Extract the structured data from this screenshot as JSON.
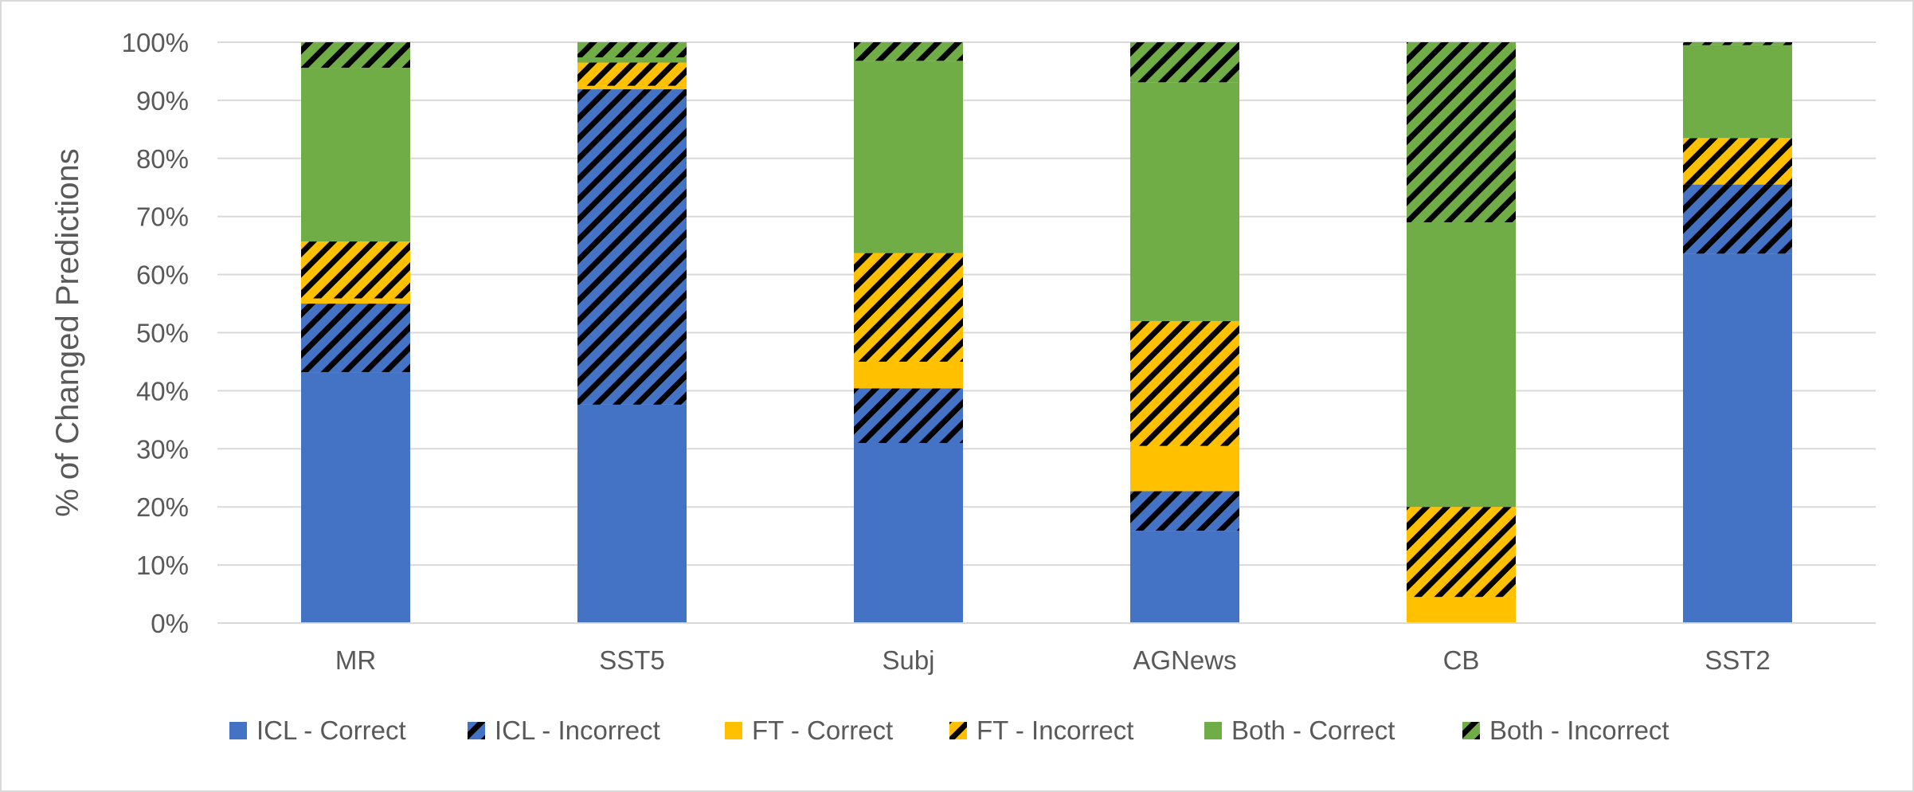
{
  "chart_data": {
    "type": "bar",
    "stacked": true,
    "title": "",
    "xlabel": "",
    "ylabel": "% of Changed Predictions",
    "ylim": [
      0,
      100
    ],
    "y_ticks": [
      "0%",
      "10%",
      "20%",
      "30%",
      "40%",
      "50%",
      "60%",
      "70%",
      "80%",
      "90%",
      "100%"
    ],
    "grid": true,
    "legend_position": "bottom",
    "categories": [
      "MR",
      "SST5",
      "Subj",
      "AGNews",
      "CB",
      "SST2"
    ],
    "series": [
      {
        "name": "ICL - Correct",
        "color": "#4472C4",
        "hatched": false,
        "values": [
          43.2,
          37.6,
          31.0,
          15.9,
          0.0,
          63.6
        ]
      },
      {
        "name": "ICL - Incorrect",
        "color": "#4472C4",
        "hatched": true,
        "values": [
          11.8,
          54.3,
          9.4,
          6.8,
          0.0,
          11.9
        ]
      },
      {
        "name": "FT - Correct",
        "color": "#FFC000",
        "hatched": false,
        "values": [
          0.9,
          0.6,
          4.6,
          7.8,
          4.5,
          0.0
        ]
      },
      {
        "name": "FT - Incorrect",
        "color": "#FFC000",
        "hatched": true,
        "values": [
          9.8,
          4.0,
          18.7,
          21.5,
          15.5,
          8.0
        ]
      },
      {
        "name": "Both - Correct",
        "color": "#70AD47",
        "hatched": false,
        "values": [
          29.9,
          0.9,
          33.1,
          41.1,
          49.0,
          16.0
        ]
      },
      {
        "name": "Both - Incorrect",
        "color": "#70AD47",
        "hatched": true,
        "values": [
          4.4,
          2.6,
          3.2,
          6.9,
          31.0,
          0.5
        ]
      }
    ]
  }
}
